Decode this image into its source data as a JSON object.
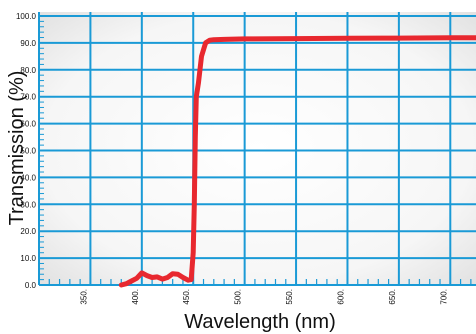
{
  "chart_data": {
    "type": "line",
    "title": "",
    "xlabel": "Wavelength (nm)",
    "ylabel": "Transmission (%)",
    "xlim": [
      300,
      725
    ],
    "ylim": [
      0,
      100
    ],
    "x_ticks": [
      350,
      400,
      450,
      500,
      550,
      600,
      650,
      700
    ],
    "x_tick_labels": [
      "350.",
      "400.",
      "450.",
      "500.",
      "550.",
      "600.",
      "650.",
      "700."
    ],
    "y_ticks": [
      0,
      10,
      20,
      30,
      40,
      50,
      60,
      70,
      80,
      90,
      100
    ],
    "y_tick_labels": [
      "0.0",
      "10.0",
      "20.0",
      "30.0",
      "40.0",
      "50.0",
      "60.0",
      "70.0",
      "80.0",
      "90.0",
      "100.0"
    ],
    "grid": true,
    "colors": {
      "grid": "#1a9ad6",
      "line": "#e8282f",
      "background_edge": "#e6e6e6"
    },
    "series": [
      {
        "x": [
          380,
          385,
          390,
          395,
          400,
          405,
          410,
          415,
          420,
          425,
          430,
          435,
          440,
          445,
          448,
          450,
          451,
          452,
          453,
          455,
          458,
          462,
          466,
          470,
          480,
          500,
          550,
          600,
          650,
          700,
          725
        ],
        "values": [
          0,
          0.5,
          1.5,
          2.5,
          4.5,
          3.5,
          2.8,
          3.0,
          2.2,
          2.8,
          4.2,
          4.0,
          2.8,
          1.8,
          2.0,
          12,
          30,
          55,
          70,
          75,
          85,
          90,
          91.0,
          91.2,
          91.3,
          91.5,
          91.6,
          91.7,
          91.8,
          91.9,
          91.9
        ]
      }
    ]
  }
}
